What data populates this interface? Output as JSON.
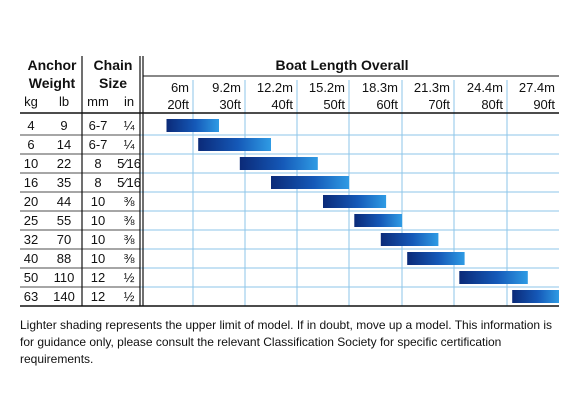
{
  "header": {
    "anchor_line1": "Anchor",
    "anchor_line2": "Weight",
    "chain_line1": "Chain",
    "chain_line2": "Size",
    "boat_title": "Boat Length Overall",
    "unit_kg": "kg",
    "unit_lb": "lb",
    "unit_mm": "mm",
    "unit_in": "in"
  },
  "footer_note": "Lighter shading represents the upper limit of model. If in doubt, move up a model. This information is for guidance only, please consult the relevant Classification Society for specific certification requirements.",
  "colors": {
    "bar_dark": "#0b2a78",
    "bar_light": "#2f9be4",
    "grid_blue": "#8cc6ea",
    "rule": "#111111"
  },
  "chart_data": {
    "type": "table",
    "boat_lengths": [
      {
        "m": "6m",
        "ft": "20ft"
      },
      {
        "m": "9.2m",
        "ft": "30ft"
      },
      {
        "m": "12.2m",
        "ft": "40ft"
      },
      {
        "m": "15.2m",
        "ft": "50ft"
      },
      {
        "m": "18.3m",
        "ft": "60ft"
      },
      {
        "m": "21.3m",
        "ft": "70ft"
      },
      {
        "m": "24.4m",
        "ft": "80ft"
      },
      {
        "m": "27.4m",
        "ft": "90ft"
      }
    ],
    "rows": [
      {
        "kg": "4",
        "lb": "9",
        "mm": "6-7",
        "in": "¼",
        "range_ft": [
          15,
          25
        ]
      },
      {
        "kg": "6",
        "lb": "14",
        "mm": "6-7",
        "in": "¼",
        "range_ft": [
          21,
          35
        ]
      },
      {
        "kg": "10",
        "lb": "22",
        "mm": "8",
        "in": "5⁄16",
        "range_ft": [
          29,
          44
        ]
      },
      {
        "kg": "16",
        "lb": "35",
        "mm": "8",
        "in": "5⁄16",
        "range_ft": [
          35,
          50
        ]
      },
      {
        "kg": "20",
        "lb": "44",
        "mm": "10",
        "in": "⅜",
        "range_ft": [
          45,
          57
        ]
      },
      {
        "kg": "25",
        "lb": "55",
        "mm": "10",
        "in": "⅜",
        "range_ft": [
          51,
          60
        ]
      },
      {
        "kg": "32",
        "lb": "70",
        "mm": "10",
        "in": "⅜",
        "range_ft": [
          56,
          67
        ]
      },
      {
        "kg": "40",
        "lb": "88",
        "mm": "10",
        "in": "⅜",
        "range_ft": [
          61,
          72
        ]
      },
      {
        "kg": "50",
        "lb": "110",
        "mm": "12",
        "in": "½",
        "range_ft": [
          71,
          84
        ]
      },
      {
        "kg": "63",
        "lb": "140",
        "mm": "12",
        "in": "½",
        "range_ft": [
          81,
          90
        ]
      }
    ]
  }
}
